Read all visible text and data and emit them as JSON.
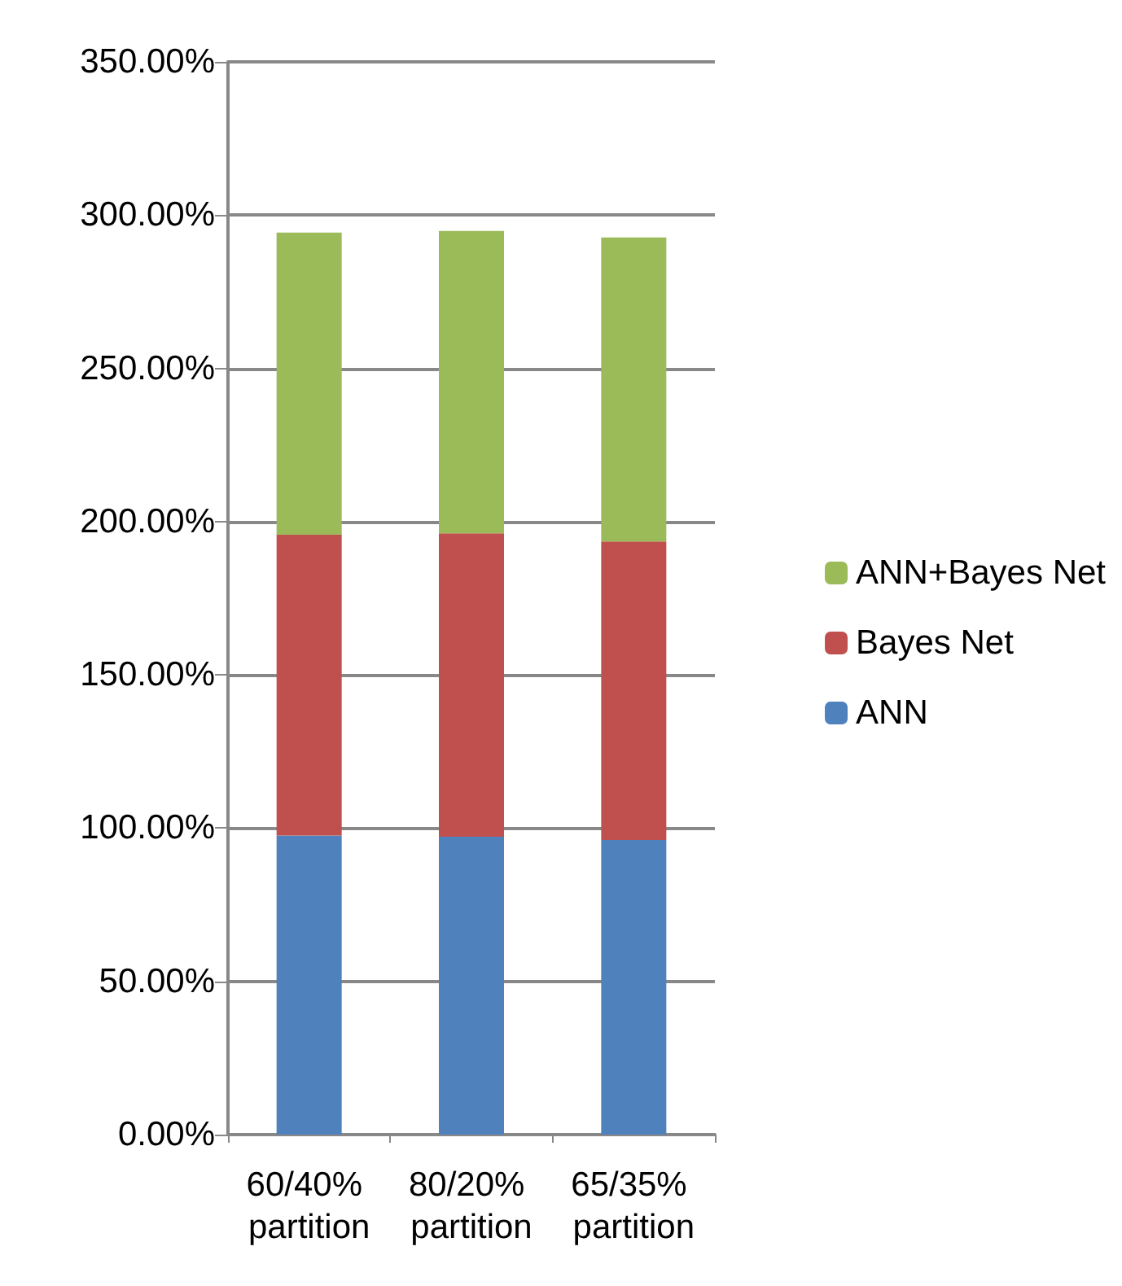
{
  "chart_data": {
    "type": "bar",
    "stacked": true,
    "categories": [
      "60/40% partition",
      "80/20% partition",
      "65/35% partition"
    ],
    "series": [
      {
        "name": "ANN",
        "color": "#4f81bd",
        "values": [
          97.6,
          97.2,
          96.1
        ]
      },
      {
        "name": "Bayes Net",
        "color": "#c0504d",
        "values": [
          98.1,
          99.0,
          97.4
        ]
      },
      {
        "name": "ANN+Bayes Net",
        "color": "#9bbb59",
        "values": [
          98.6,
          98.6,
          99.2
        ]
      }
    ],
    "ylim": [
      0,
      350
    ],
    "yticks": [
      {
        "value": 0,
        "label": "0.00%"
      },
      {
        "value": 50,
        "label": "50.00%"
      },
      {
        "value": 100,
        "label": "100.00%"
      },
      {
        "value": 150,
        "label": "150.00%"
      },
      {
        "value": 200,
        "label": "200.00%"
      },
      {
        "value": 250,
        "label": "250.00%"
      },
      {
        "value": 300,
        "label": "300.00%"
      },
      {
        "value": 350,
        "label": "350.00%"
      }
    ],
    "grid": "y",
    "legend": "right"
  }
}
